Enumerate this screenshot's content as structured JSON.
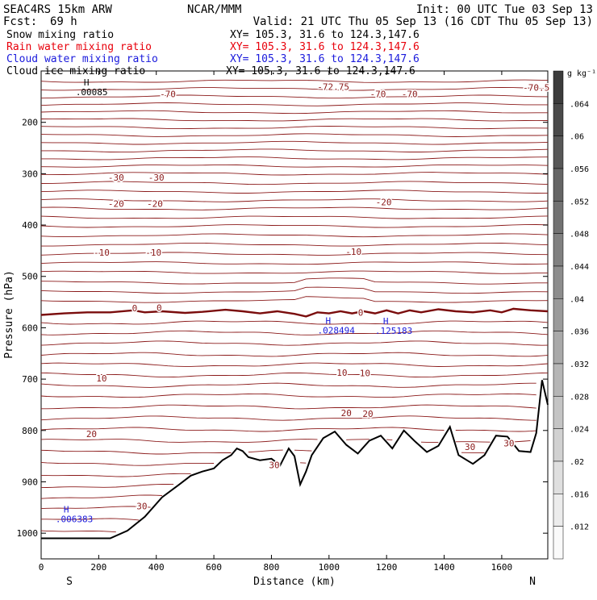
{
  "header": {
    "model": "SEAC4RS 15km ARW",
    "org": "NCAR/MMM",
    "init": "Init: 00 UTC Tue 03 Sep 13",
    "fcst_label": "Fcst:",
    "fcst_value": "69 h",
    "valid": "Valid: 21 UTC Thu 05 Sep 13 (16 CDT Thu 05 Sep 13)"
  },
  "fields": [
    {
      "name": "Snow mixing ratio",
      "xy": "XY= 105.3, 31.6 to 124.3,147.6",
      "color": "#000000"
    },
    {
      "name": "Rain water mixing ratio",
      "xy": "XY= 105.3, 31.6 to 124.3,147.6",
      "color": "#e8000b"
    },
    {
      "name": "Cloud water mixing ratio",
      "xy": "XY= 105.3, 31.6 to 124.3,147.6",
      "color": "#1a1adc"
    },
    {
      "name": "Cloud ice mixing ratio",
      "xy": "XY= 105.3, 31.6 to 124.3,147.6",
      "color": "#000000"
    }
  ],
  "chart_data": {
    "type": "contour-cross-section",
    "xlabel": "Distance (km)",
    "ylabel": "Pressure (hPa)",
    "x_range": [
      0,
      1760
    ],
    "y_range": [
      1050,
      100
    ],
    "x_ticks": [
      0,
      200,
      400,
      600,
      800,
      1000,
      1200,
      1400,
      1600
    ],
    "y_ticks": [
      200,
      300,
      400,
      500,
      600,
      700,
      800,
      900,
      1000
    ],
    "end_labels": {
      "left": "S",
      "right": "N"
    },
    "colorbar": {
      "unit": "g kg⁻¹",
      "ticks": [
        ".064",
        ".06",
        ".056",
        ".052",
        ".048",
        ".044",
        ".04",
        ".036",
        ".032",
        ".028",
        ".024",
        ".02",
        ".016",
        ".012"
      ]
    },
    "contour_labels": [
      {
        "text": "-70",
        "x": 440,
        "p": 145
      },
      {
        "text": "-70",
        "x": 1170,
        "p": 145
      },
      {
        "text": "-70",
        "x": 1280,
        "p": 145
      },
      {
        "text": "-70.5",
        "x": 1720,
        "p": 132
      },
      {
        "text": "-72.75",
        "x": 1015,
        "p": 131
      },
      {
        "text": "-30",
        "x": 260,
        "p": 307
      },
      {
        "text": "-30",
        "x": 400,
        "p": 307
      },
      {
        "text": "-20",
        "x": 260,
        "p": 358
      },
      {
        "text": "-20",
        "x": 395,
        "p": 358
      },
      {
        "text": "-20",
        "x": 1190,
        "p": 355
      },
      {
        "text": "-10",
        "x": 210,
        "p": 453
      },
      {
        "text": "-10",
        "x": 390,
        "p": 453
      },
      {
        "text": "-10",
        "x": 1085,
        "p": 452
      },
      {
        "text": "0",
        "x": 325,
        "p": 562
      },
      {
        "text": "0",
        "x": 410,
        "p": 561
      },
      {
        "text": "0",
        "x": 1110,
        "p": 570
      },
      {
        "text": "10",
        "x": 210,
        "p": 698
      },
      {
        "text": "10",
        "x": 1045,
        "p": 687
      },
      {
        "text": "10",
        "x": 1125,
        "p": 688
      },
      {
        "text": "20",
        "x": 175,
        "p": 807
      },
      {
        "text": "20",
        "x": 1060,
        "p": 766
      },
      {
        "text": "20",
        "x": 1135,
        "p": 767
      },
      {
        "text": "30",
        "x": 810,
        "p": 867
      },
      {
        "text": "30",
        "x": 350,
        "p": 947
      },
      {
        "text": "30",
        "x": 1490,
        "p": 832
      },
      {
        "text": "30",
        "x": 1625,
        "p": 825
      }
    ],
    "maxima": [
      {
        "label": "H",
        "value": ".00085",
        "x": 120,
        "p": 128,
        "color": "#000000"
      },
      {
        "label": "H",
        "value": ".028494",
        "x": 960,
        "p": 592,
        "color": "#1a1adc"
      },
      {
        "label": "H",
        "value": ".125183",
        "x": 1160,
        "p": 593,
        "color": "#1a1adc"
      },
      {
        "label": "H",
        "value": ".006383",
        "x": 50,
        "p": 960,
        "color": "#1a1adc"
      }
    ],
    "terrain": [
      [
        0,
        1010
      ],
      [
        240,
        1010
      ],
      [
        300,
        995
      ],
      [
        360,
        968
      ],
      [
        420,
        930
      ],
      [
        480,
        905
      ],
      [
        520,
        888
      ],
      [
        560,
        880
      ],
      [
        600,
        874
      ],
      [
        630,
        858
      ],
      [
        660,
        848
      ],
      [
        680,
        835
      ],
      [
        700,
        840
      ],
      [
        720,
        852
      ],
      [
        760,
        858
      ],
      [
        800,
        855
      ],
      [
        830,
        868
      ],
      [
        860,
        835
      ],
      [
        880,
        850
      ],
      [
        900,
        905
      ],
      [
        920,
        880
      ],
      [
        940,
        848
      ],
      [
        980,
        815
      ],
      [
        1020,
        802
      ],
      [
        1060,
        828
      ],
      [
        1100,
        845
      ],
      [
        1140,
        820
      ],
      [
        1180,
        810
      ],
      [
        1220,
        835
      ],
      [
        1260,
        800
      ],
      [
        1300,
        822
      ],
      [
        1340,
        842
      ],
      [
        1380,
        830
      ],
      [
        1420,
        793
      ],
      [
        1450,
        848
      ],
      [
        1500,
        865
      ],
      [
        1540,
        848
      ],
      [
        1580,
        810
      ],
      [
        1620,
        812
      ],
      [
        1660,
        840
      ],
      [
        1700,
        842
      ],
      [
        1720,
        805
      ],
      [
        1740,
        702
      ],
      [
        1760,
        750
      ]
    ],
    "freezing_level": [
      [
        0,
        575
      ],
      [
        80,
        572
      ],
      [
        160,
        570
      ],
      [
        240,
        570
      ],
      [
        320,
        566
      ],
      [
        360,
        570
      ],
      [
        420,
        568
      ],
      [
        500,
        571
      ],
      [
        560,
        569
      ],
      [
        640,
        565
      ],
      [
        700,
        568
      ],
      [
        760,
        572
      ],
      [
        820,
        568
      ],
      [
        880,
        573
      ],
      [
        920,
        578
      ],
      [
        960,
        570
      ],
      [
        1000,
        572
      ],
      [
        1040,
        568
      ],
      [
        1080,
        572
      ],
      [
        1120,
        568
      ],
      [
        1160,
        572
      ],
      [
        1200,
        566
      ],
      [
        1240,
        572
      ],
      [
        1280,
        566
      ],
      [
        1320,
        570
      ],
      [
        1380,
        564
      ],
      [
        1440,
        568
      ],
      [
        1500,
        570
      ],
      [
        1560,
        566
      ],
      [
        1600,
        570
      ],
      [
        1640,
        563
      ],
      [
        1700,
        566
      ],
      [
        1760,
        568
      ]
    ],
    "isotherm_levels": [
      120,
      135,
      150,
      165,
      180,
      195,
      210,
      225,
      240,
      255,
      270,
      285,
      300,
      318,
      335,
      352,
      368,
      385,
      402,
      420,
      438,
      456,
      474,
      492,
      512,
      530,
      548
    ],
    "warm_isotherm_levels": [
      590,
      610,
      630,
      652,
      672,
      692,
      712,
      732,
      754,
      776,
      798,
      820,
      842,
      864,
      886,
      908,
      930,
      952,
      975,
      998
    ]
  }
}
